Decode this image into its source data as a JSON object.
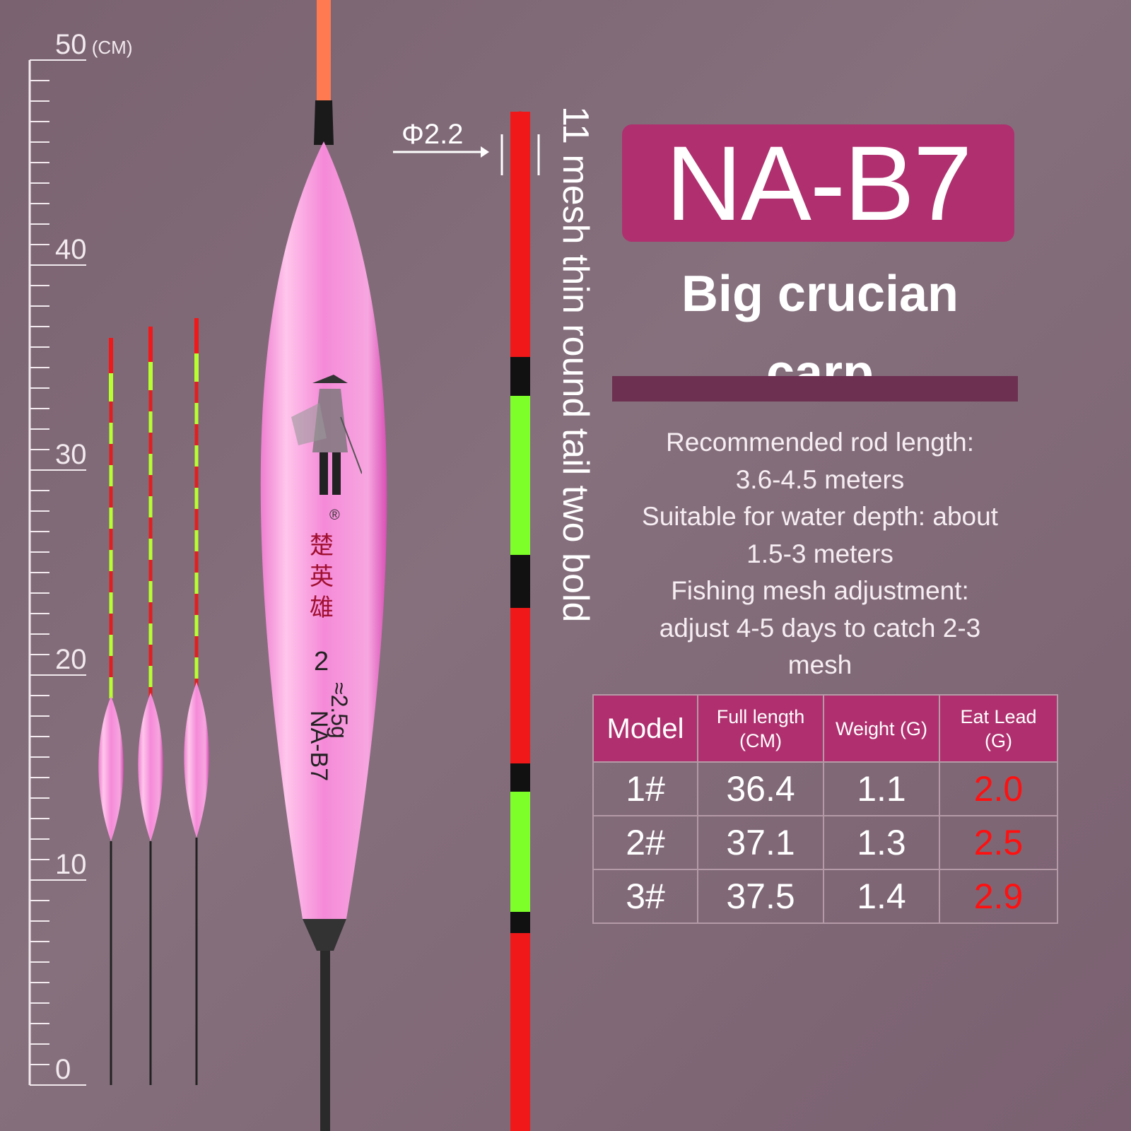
{
  "ruler": {
    "unit": "(CM)",
    "labels": [
      "50",
      "40",
      "30",
      "20",
      "10",
      "0"
    ]
  },
  "float_markings": {
    "brand": "楚英雄",
    "registered": "®",
    "size": "2",
    "weight": "≈2.5g",
    "model": "NA-B7"
  },
  "tip": {
    "diameter_label": "Φ2.2",
    "description": "11 mesh thin round tail two bold"
  },
  "title": "NA-B7",
  "subtitle": "Big crucian carp",
  "description": [
    "Recommended rod length:",
    "3.6-4.5 meters",
    "Suitable for water depth: about",
    "1.5-3 meters",
    "Fishing mesh adjustment:",
    "adjust 4-5 days to catch 2-3",
    "mesh"
  ],
  "table": {
    "headers": [
      "Model",
      "Full length (CM)",
      "Weight (G)",
      "Eat Lead (G)"
    ],
    "rows": [
      [
        "1#",
        "36.4",
        "1.1",
        "2.0"
      ],
      [
        "2#",
        "37.1",
        "1.3",
        "2.5"
      ],
      [
        "3#",
        "37.5",
        "1.4",
        "2.9"
      ]
    ]
  },
  "colors": {
    "accent": "#b0306f",
    "bar": "#6d3050",
    "lead_value": "#ff1010",
    "float_pink": "#f48fd6",
    "tip_red": "#f01818",
    "tip_green": "#7dff2a"
  }
}
